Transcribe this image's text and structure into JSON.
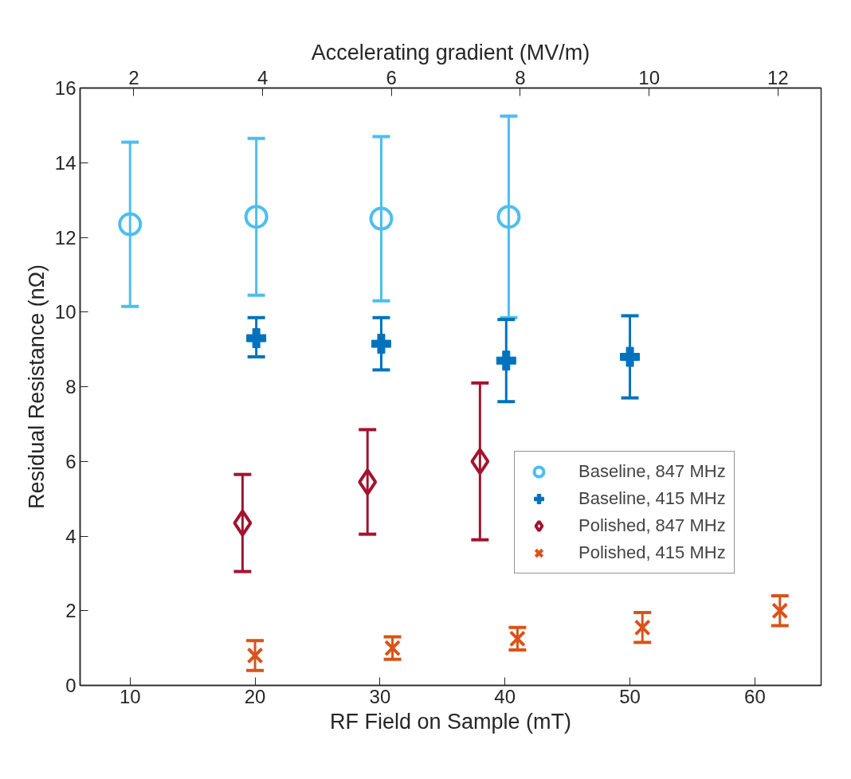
{
  "chart_data": {
    "type": "scatter",
    "xlabel": "RF Field on Sample (mT)",
    "ylabel": "Residual Resistance (nΩ)",
    "x2label": "Accelerating gradient (MV/m)",
    "xlim": [
      6.0,
      65.3
    ],
    "xticks": [
      10,
      20,
      30,
      40,
      50,
      60
    ],
    "ylim": [
      0,
      16
    ],
    "yticks": [
      0,
      2,
      4,
      6,
      8,
      10,
      12,
      14,
      16
    ],
    "x2lim": [
      1.166,
      12.67
    ],
    "x2ticks": [
      2,
      4,
      6,
      8,
      10,
      12
    ],
    "grid": false,
    "legend": "right",
    "series": [
      {
        "name": "Baseline, 847 MHz",
        "color": "#4dbeee",
        "marker": "circle",
        "x": [
          10,
          20.1,
          30.1,
          40.3
        ],
        "values": [
          12.35,
          12.55,
          12.5,
          12.55
        ],
        "errors": [
          [
            10.15,
            14.55
          ],
          [
            10.45,
            14.65
          ],
          [
            10.3,
            14.7
          ],
          [
            9.85,
            15.25
          ]
        ]
      },
      {
        "name": "Baseline, 415 MHz",
        "color": "#0072bd",
        "marker": "cross",
        "x": [
          20.1,
          30.1,
          40.1,
          50
        ],
        "values": [
          9.3,
          9.15,
          8.7,
          8.8
        ],
        "errors": [
          [
            8.8,
            9.85
          ],
          [
            8.45,
            9.85
          ],
          [
            7.6,
            9.8
          ],
          [
            7.7,
            9.9
          ]
        ]
      },
      {
        "name": "Polished, 847 MHz",
        "color": "#a2142f",
        "marker": "diamond",
        "x": [
          19,
          29,
          38
        ],
        "values": [
          4.35,
          5.45,
          6.0
        ],
        "errors": [
          [
            3.05,
            5.65
          ],
          [
            4.05,
            6.85
          ],
          [
            3.9,
            8.1
          ]
        ]
      },
      {
        "name": "Polished, 415 MHz",
        "color": "#d95319",
        "marker": "x",
        "x": [
          20,
          31,
          41,
          51,
          62
        ],
        "values": [
          0.8,
          1.0,
          1.25,
          1.55,
          2.0
        ],
        "errors": [
          [
            0.4,
            1.2
          ],
          [
            0.7,
            1.3
          ],
          [
            0.95,
            1.55
          ],
          [
            1.15,
            1.95
          ],
          [
            1.6,
            2.4
          ]
        ]
      }
    ]
  }
}
